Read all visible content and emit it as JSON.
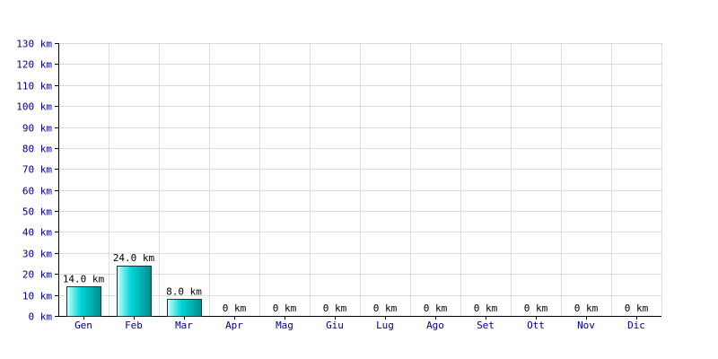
{
  "chart_data": {
    "type": "bar",
    "categories": [
      "Gen",
      "Feb",
      "Mar",
      "Apr",
      "Mag",
      "Giu",
      "Lug",
      "Ago",
      "Set",
      "Ott",
      "Nov",
      "Dic"
    ],
    "values": [
      14,
      24,
      8,
      0,
      0,
      0,
      0,
      0,
      0,
      0,
      0,
      0
    ],
    "data_labels": [
      "14.0 km",
      "24.0 km",
      "8.0 km",
      "0 km",
      "0 km",
      "0 km",
      "0 km",
      "0 km",
      "0 km",
      "0 km",
      "0 km",
      "0 km"
    ],
    "y_ticks": [
      0,
      10,
      20,
      30,
      40,
      50,
      60,
      70,
      80,
      90,
      100,
      110,
      120,
      130
    ],
    "y_tick_labels": [
      "0 km",
      "10 km",
      "20 km",
      "30 km",
      "40 km",
      "50 km",
      "60 km",
      "70 km",
      "80 km",
      "90 km",
      "100 km",
      "110 km",
      "120 km",
      "130 km"
    ],
    "ylim": [
      0,
      130
    ],
    "grid": true,
    "legend": "none",
    "title": "",
    "xlabel": "",
    "ylabel": "",
    "colors": {
      "bar_light": "#c8ffff",
      "bar_mid": "#00d8d8",
      "bar_dark": "#008a8a",
      "tick_text": "#000080",
      "grid": "#dcdcdc"
    }
  }
}
